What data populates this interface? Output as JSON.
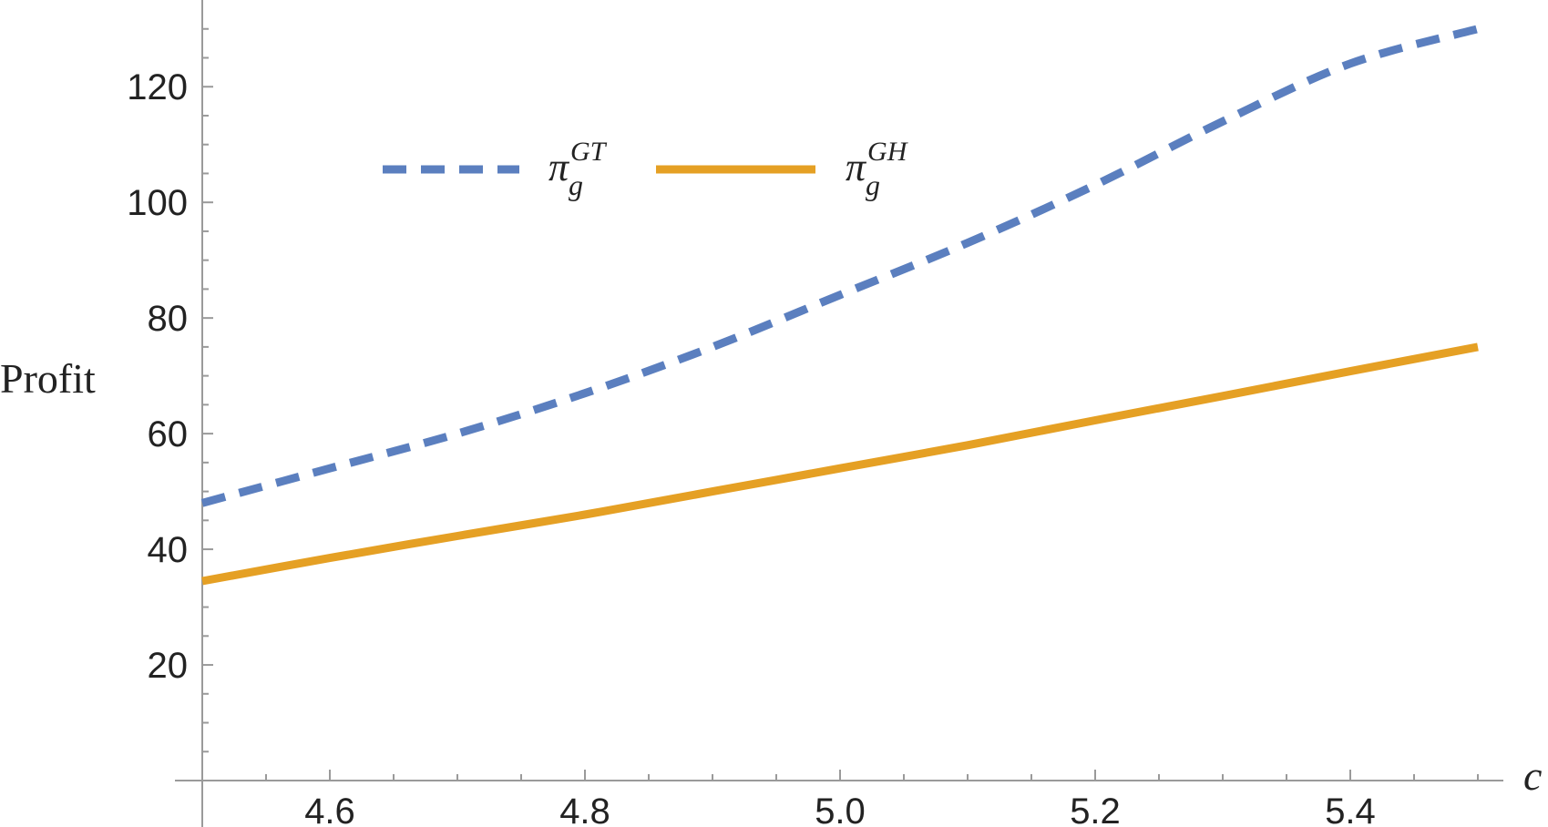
{
  "chart_data": {
    "type": "line",
    "xlabel": "c",
    "ylabel": "Profit",
    "xlim": [
      4.5,
      5.5
    ],
    "ylim": [
      0,
      135
    ],
    "x_ticks": [
      "4.6",
      "4.8",
      "5.0",
      "5.2",
      "5.4"
    ],
    "y_ticks": [
      "20",
      "40",
      "60",
      "80",
      "100",
      "120"
    ],
    "legend_placement": "top-center",
    "grid": false,
    "series": [
      {
        "name": "π_g^GT",
        "label_main": "π",
        "label_sub": "g",
        "label_sup": "GT",
        "color": "#5b7fbf",
        "style": "dashed",
        "x": [
          4.5,
          4.6,
          4.7,
          4.8,
          4.9,
          5.0,
          5.1,
          5.2,
          5.3,
          5.4,
          5.5
        ],
        "y": [
          48,
          54,
          60,
          67,
          75,
          84,
          93,
          103,
          114,
          124,
          130
        ]
      },
      {
        "name": "π_g^GH",
        "label_main": "π",
        "label_sub": "g",
        "label_sup": "GH",
        "color": "#e5a024",
        "style": "solid",
        "x": [
          4.5,
          4.6,
          4.7,
          4.8,
          4.9,
          5.0,
          5.1,
          5.2,
          5.3,
          5.4,
          5.5
        ],
        "y": [
          34.5,
          38.5,
          42.3,
          46,
          50,
          54,
          58,
          62.3,
          66.5,
          70.8,
          75
        ]
      }
    ]
  }
}
